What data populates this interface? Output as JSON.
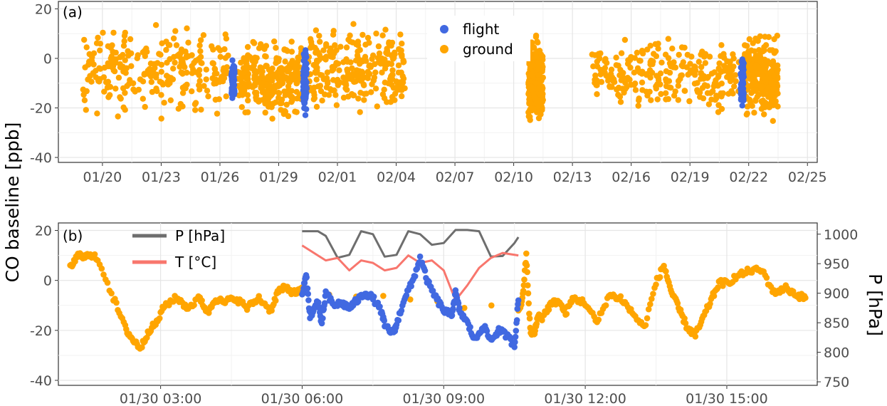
{
  "figure": {
    "ylabel": "CO baseline [ppb]",
    "colors": {
      "flight": "#4169E1",
      "ground": "#FFA500",
      "pressure": "#6e6e6e",
      "temperature": "#F8766D"
    }
  },
  "chart_data": [
    {
      "type": "scatter",
      "panel_label": "(a)",
      "xlabel": "",
      "ylabel": "CO baseline [ppb]",
      "x_unit": "date",
      "xlim": [
        "01/17 18:00",
        "02/25 12:00"
      ],
      "x_ticks": [
        "01/20",
        "01/23",
        "01/26",
        "01/29",
        "02/01",
        "02/04",
        "02/07",
        "02/10",
        "02/13",
        "02/16",
        "02/19",
        "02/22",
        "02/25"
      ],
      "ylim": [
        -42,
        23
      ],
      "y_ticks": [
        -40,
        -20,
        0,
        20
      ],
      "grid": true,
      "legend": {
        "position": "top-center",
        "entries": [
          "flight",
          "ground"
        ]
      },
      "series": [
        {
          "name": "ground",
          "color": "#FFA500",
          "dense_bands": [
            {
              "x_start": "01/19 00:00",
              "x_end": "01/26 12:00",
              "y_low": -28,
              "y_high": 18
            },
            {
              "x_start": "01/26 20:00",
              "x_end": "01/30 06:00",
              "y_low": -27,
              "y_high": 11
            },
            {
              "x_start": "01/30 12:00",
              "x_end": "02/04 12:00",
              "y_low": -28,
              "y_high": 17
            },
            {
              "x_start": "02/10 18:00",
              "x_end": "02/11 12:00",
              "y_low": -31,
              "y_high": 12
            },
            {
              "x_start": "02/14 00:00",
              "x_end": "02/21 12:00",
              "y_low": -26,
              "y_high": 13
            },
            {
              "x_start": "02/21 18:00",
              "x_end": "02/23 12:00",
              "y_low": -28,
              "y_high": 13
            }
          ]
        },
        {
          "name": "flight",
          "color": "#4169E1",
          "dense_bands": [
            {
              "x_start": "01/26 14:00",
              "x_end": "01/26 18:00",
              "y_low": -19,
              "y_high": 2
            },
            {
              "x_start": "01/30 06:00",
              "x_end": "01/30 10:30",
              "y_low": -25,
              "y_high": 8
            },
            {
              "x_start": "02/21 14:00",
              "x_end": "02/21 18:00",
              "y_low": -24,
              "y_high": 7
            }
          ]
        }
      ]
    },
    {
      "type": "line",
      "panel_label": "(b)",
      "xlabel": "",
      "ylabel": "CO baseline [ppb]",
      "y2label": "P [hPa]",
      "x_unit": "time on 01/30",
      "xlim": [
        "01/30 00:50",
        "01/30 16:55"
      ],
      "x_ticks": [
        "01/30 03:00",
        "01/30 06:00",
        "01/30 09:00",
        "01/30 12:00",
        "01/30 15:00"
      ],
      "ylim": [
        -42,
        23
      ],
      "y_ticks": [
        -40,
        -20,
        0,
        20
      ],
      "y2lim": [
        744,
        1019
      ],
      "y2_ticks": [
        750,
        800,
        850,
        900,
        950,
        1000
      ],
      "grid": true,
      "legend": {
        "position": "top-left",
        "entries": [
          "P [hPa]",
          "T [°C]"
        ]
      },
      "series": [
        {
          "name": "ground",
          "color": "#FFA500",
          "style": "points",
          "x": [
            "01:05",
            "01:15",
            "01:25",
            "01:40",
            "02:00",
            "02:15",
            "02:25",
            "02:35",
            "02:45",
            "02:55",
            "03:05",
            "03:20",
            "03:35",
            "03:50",
            "04:00",
            "04:10",
            "04:20",
            "04:35",
            "04:50",
            "05:05",
            "05:20",
            "05:30",
            "05:40",
            "05:50",
            "06:00",
            "10:35",
            "10:40",
            "10:45",
            "10:50",
            "10:55",
            "11:00",
            "11:05",
            "11:15",
            "11:25",
            "11:35",
            "11:45",
            "12:00",
            "12:15",
            "12:30",
            "12:45",
            "13:00",
            "13:15",
            "13:30",
            "13:40",
            "13:50",
            "14:00",
            "14:10",
            "14:20",
            "14:30",
            "14:40",
            "14:50",
            "15:00",
            "15:15",
            "15:30",
            "15:45",
            "16:00",
            "16:15",
            "16:30",
            "16:40"
          ],
          "y": [
            5,
            10,
            10,
            9,
            -7,
            -19,
            -24,
            -27,
            -20,
            -17,
            -10,
            -7,
            -11,
            -7,
            -13,
            -7,
            -9,
            -7,
            -11,
            -7,
            -12,
            -4,
            -3,
            -5,
            -4,
            -12,
            -8,
            10,
            -20,
            -22,
            -14,
            -15,
            -10,
            -8,
            -13,
            -7,
            -9,
            -17,
            -6,
            -7,
            -13,
            -19,
            -1,
            6,
            -5,
            -12,
            -19,
            -22,
            -15,
            -8,
            -1,
            -1,
            2,
            4,
            4,
            -5,
            -3,
            -6,
            -7
          ]
        },
        {
          "name": "flight",
          "color": "#4169E1",
          "style": "points",
          "x": [
            "06:00",
            "06:05",
            "06:10",
            "06:15",
            "06:20",
            "06:25",
            "06:30",
            "06:40",
            "06:50",
            "07:00",
            "07:10",
            "07:20",
            "07:30",
            "07:40",
            "07:45",
            "07:55",
            "08:00",
            "08:10",
            "08:20",
            "08:30",
            "08:40",
            "08:50",
            "09:00",
            "09:10",
            "09:15",
            "09:20",
            "09:30",
            "09:40",
            "09:50",
            "10:00",
            "10:10",
            "10:20",
            "10:30",
            "10:35"
          ],
          "y": [
            -6,
            2,
            -14,
            -12,
            -8,
            -18,
            -5,
            -10,
            -9,
            -11,
            -8,
            -5,
            -7,
            -12,
            -18,
            -21,
            -18,
            -7,
            -1,
            9,
            -1,
            -7,
            -12,
            -14,
            -5,
            -12,
            -17,
            -24,
            -18,
            -24,
            -20,
            -22,
            -26,
            -8
          ]
        },
        {
          "name": "P [hPa]",
          "color": "#6e6e6e",
          "style": "line",
          "axis": "right",
          "x": [
            "06:00",
            "06:20",
            "06:30",
            "06:45",
            "07:00",
            "07:15",
            "07:30",
            "07:45",
            "08:00",
            "08:15",
            "08:30",
            "08:45",
            "09:00",
            "09:15",
            "09:30",
            "09:45",
            "10:00",
            "10:15",
            "10:30",
            "10:35"
          ],
          "y": [
            1005,
            1005,
            997,
            960,
            965,
            1005,
            1000,
            962,
            965,
            1005,
            1000,
            982,
            985,
            1007,
            1007,
            1005,
            962,
            963,
            985,
            995
          ]
        },
        {
          "name": "T [°C]",
          "color": "#F8766D",
          "style": "line",
          "x": [
            "06:00",
            "06:10",
            "06:20",
            "06:30",
            "06:45",
            "07:00",
            "07:15",
            "07:30",
            "07:45",
            "08:00",
            "08:15",
            "08:30",
            "08:45",
            "09:00",
            "09:15",
            "09:30",
            "09:45",
            "10:00",
            "10:15",
            "10:35"
          ],
          "y": [
            14,
            12,
            10,
            8,
            9,
            4,
            8,
            7,
            4,
            5,
            10,
            7,
            8,
            4,
            -8,
            -2,
            5,
            9,
            11,
            10
          ]
        }
      ]
    }
  ]
}
